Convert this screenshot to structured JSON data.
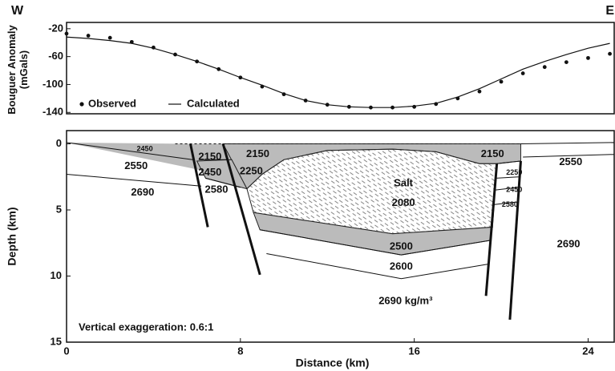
{
  "chart_data": [
    {
      "type": "line",
      "direction_labels": [
        "W",
        "E"
      ],
      "ylabel": [
        "Bouguer Anomaly",
        "(mGals)"
      ],
      "xlim": [
        0,
        25.2
      ],
      "ylim": [
        -142,
        -11
      ],
      "yticks": [
        -20,
        -60,
        -100,
        -140
      ],
      "x": [
        0,
        1,
        2,
        3,
        4,
        5,
        6,
        7,
        8,
        9,
        10,
        11,
        12,
        13,
        14,
        15,
        16,
        17,
        18,
        19,
        20,
        21,
        22,
        23,
        24,
        25
      ],
      "series": [
        {
          "name": "Observed",
          "style": "markers",
          "color": "#111",
          "values": [
            -27,
            -30,
            -33,
            -39,
            -47,
            -57,
            -67,
            -78,
            -90,
            -103,
            -114,
            -123,
            -129,
            -132,
            -133,
            -133,
            -132,
            -128,
            -120,
            -110,
            -96,
            -84,
            -75,
            -68,
            -62,
            -56
          ]
        },
        {
          "name": "Calculated",
          "style": "line",
          "color": "#111",
          "values": [
            -32,
            -34,
            -37,
            -41,
            -48,
            -57,
            -67,
            -78,
            -90,
            -101,
            -113,
            -123,
            -129,
            -132,
            -133,
            -133,
            -131,
            -127,
            -118,
            -106,
            -92,
            -78,
            -67,
            -57,
            -48,
            -41
          ]
        }
      ]
    },
    {
      "type": "cross-section",
      "xlabel": "Distance (km)",
      "ylabel": "Depth (km)",
      "xlim": [
        0,
        25.2
      ],
      "ylim": [
        15,
        -1
      ],
      "xticks": [
        0,
        8,
        16,
        24
      ],
      "yticks": [
        0,
        5,
        10,
        15
      ],
      "annotations": [
        "2450",
        "2550",
        "2690",
        "2150",
        "2450",
        "2580",
        "2150",
        "2250",
        "Salt",
        "2080",
        "2150",
        "2250",
        "2450",
        "2580",
        "2550",
        "2690",
        "2500",
        "2600",
        "2690 kg/m³",
        "Vertical exaggeration: 0.6:1"
      ]
    }
  ]
}
